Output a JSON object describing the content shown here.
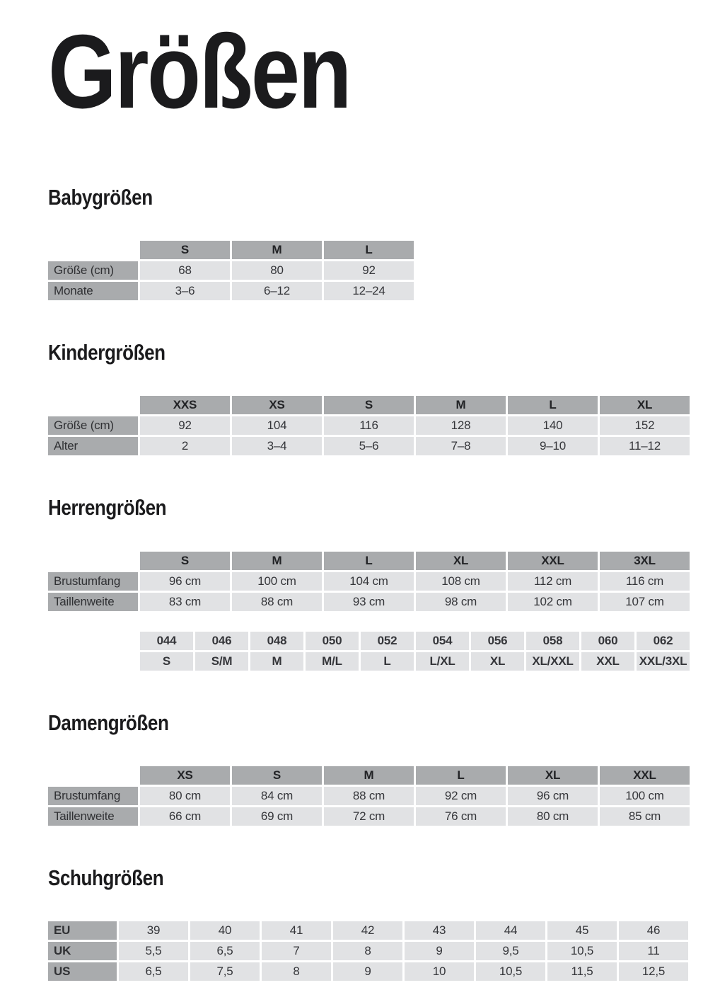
{
  "page": {
    "title": "Größen"
  },
  "colors": {
    "header_bg": "#a9abad",
    "label_bg": "#a9abad",
    "cell_bg": "#e1e2e4",
    "heading_color": "#1b1b1d",
    "page_bg": "#ffffff"
  },
  "sections": [
    {
      "heading": "Babygrößen",
      "table": {
        "header": [
          "S",
          "M",
          "L"
        ],
        "rows": [
          {
            "label": "Größe (cm)",
            "cells": [
              "68",
              "80",
              "92"
            ]
          },
          {
            "label": "Monate",
            "cells": [
              "3–6",
              "6–12",
              "12–24"
            ]
          }
        ]
      }
    },
    {
      "heading": "Kindergrößen",
      "table": {
        "header": [
          "XXS",
          "XS",
          "S",
          "M",
          "L",
          "XL"
        ],
        "rows": [
          {
            "label": "Größe (cm)",
            "cells": [
              "92",
              "104",
              "116",
              "128",
              "140",
              "152"
            ]
          },
          {
            "label": "Alter",
            "cells": [
              "2",
              "3–4",
              "5–6",
              "7–8",
              "9–10",
              "11–12"
            ]
          }
        ]
      }
    },
    {
      "heading": "Herrengrößen",
      "table": {
        "header": [
          "S",
          "M",
          "L",
          "XL",
          "XXL",
          "3XL"
        ],
        "rows": [
          {
            "label": "Brustumfang",
            "cells": [
              "96 cm",
              "100 cm",
              "104 cm",
              "108 cm",
              "112 cm",
              "116 cm"
            ]
          },
          {
            "label": "Taillenweite",
            "cells": [
              "83 cm",
              "88 cm",
              "93 cm",
              "98 cm",
              "102 cm",
              "107 cm"
            ]
          }
        ]
      },
      "table2": {
        "rows": [
          {
            "cells": [
              "044",
              "046",
              "048",
              "050",
              "052",
              "054",
              "056",
              "058",
              "060",
              "062"
            ]
          },
          {
            "cells": [
              "S",
              "S/M",
              "M",
              "M/L",
              "L",
              "L/XL",
              "XL",
              "XL/XXL",
              "XXL",
              "XXL/3XL"
            ]
          }
        ]
      }
    },
    {
      "heading": "Damengrößen",
      "table": {
        "header": [
          "XS",
          "S",
          "M",
          "L",
          "XL",
          "XXL"
        ],
        "rows": [
          {
            "label": "Brustumfang",
            "cells": [
              "80 cm",
              "84 cm",
              "88 cm",
              "92 cm",
              "96 cm",
              "100 cm"
            ]
          },
          {
            "label": "Taillenweite",
            "cells": [
              "66 cm",
              "69 cm",
              "72 cm",
              "76 cm",
              "80 cm",
              "85 cm"
            ]
          }
        ]
      }
    },
    {
      "heading": "Schuhgrößen",
      "table": {
        "rows": [
          {
            "label": "EU",
            "cells": [
              "39",
              "40",
              "41",
              "42",
              "43",
              "44",
              "45",
              "46"
            ]
          },
          {
            "label": "UK",
            "cells": [
              "5,5",
              "6,5",
              "7",
              "8",
              "9",
              "9,5",
              "10,5",
              "11"
            ]
          },
          {
            "label": "US",
            "cells": [
              "6,5",
              "7,5",
              "8",
              "9",
              "10",
              "10,5",
              "11,5",
              "12,5"
            ]
          }
        ]
      }
    }
  ]
}
